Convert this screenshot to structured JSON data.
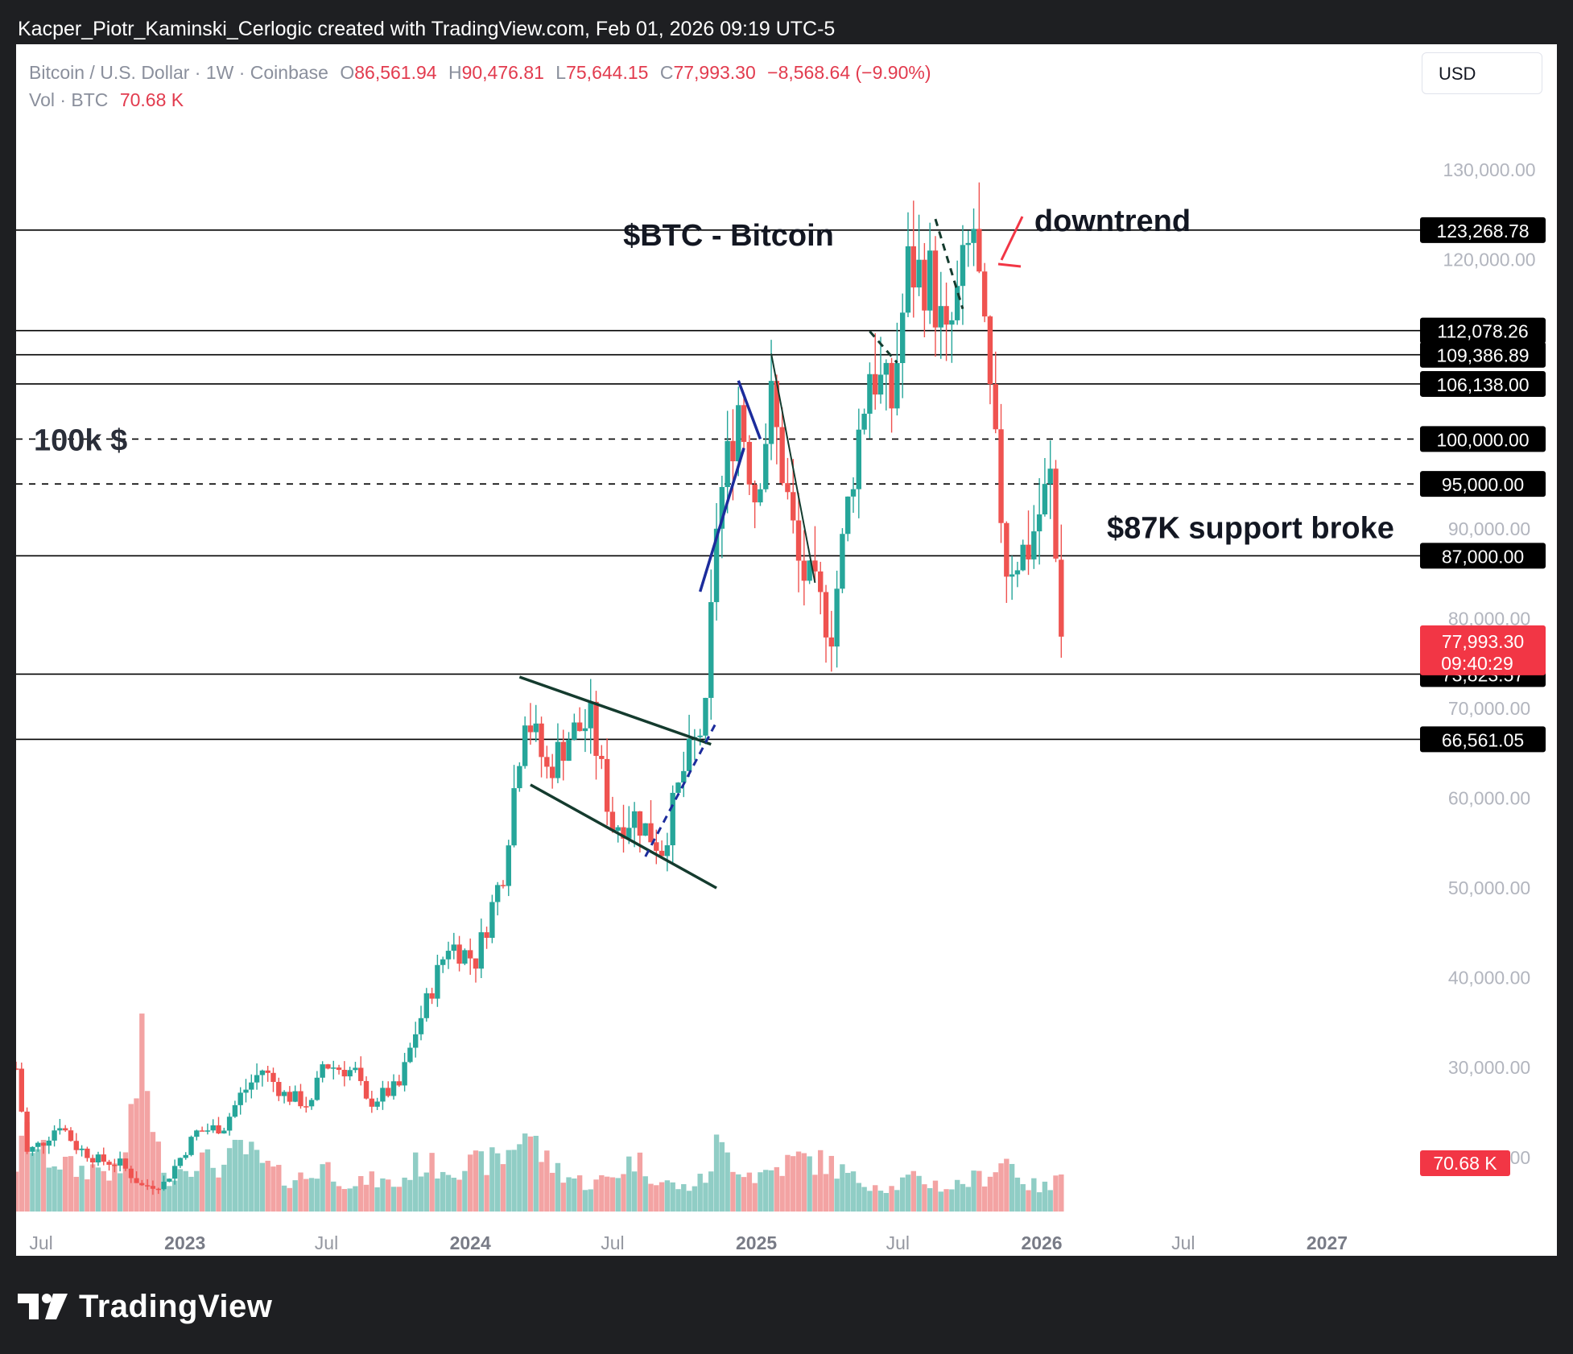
{
  "header": {
    "text": "Kacper_Piotr_Kaminski_Cerlogic created with TradingView.com, Feb 01, 2026 09:19 UTC-5"
  },
  "legend": {
    "symbol": "Bitcoin / U.S. Dollar · 1W · Coinbase",
    "o_label": "O",
    "o_value": "86,561.94",
    "h_label": "H",
    "h_value": "90,476.81",
    "l_label": "L",
    "l_value": "75,644.15",
    "c_label": "C",
    "c_value": "77,993.30",
    "change": "−8,568.64 (−9.90%)",
    "vol_label": "Vol · BTC",
    "vol_value": "70.68 K"
  },
  "currency": "USD",
  "footer": {
    "brand": "TradingView"
  },
  "colors": {
    "up": "#26a69a",
    "down": "#ef5350",
    "vol_up": "#90cdc5",
    "vol_down": "#f3a3a3",
    "accent_red": "#f23645",
    "level_bg": "#000000"
  },
  "chart_data": {
    "type": "candlestick",
    "title": "$BTC - Bitcoin",
    "interval": "1W",
    "ylim": [
      12000,
      135000
    ],
    "y_ticks": [
      "130,000.00",
      "120,000.00",
      "90,000.00",
      "80,000.00",
      "70,000.00",
      "60,000.00",
      "50,000.00",
      "40,000.00",
      "30,000.00",
      "20,000.00"
    ],
    "y_tick_values": [
      130000,
      120000,
      90000,
      80000,
      70000,
      60000,
      50000,
      40000,
      30000,
      20000
    ],
    "x_ticks": [
      "Jul",
      "2023",
      "Jul",
      "2024",
      "Jul",
      "2025",
      "Jul",
      "2026",
      "Jul",
      "2027"
    ],
    "x_tick_dates": [
      "2022-07-01",
      "2023-01-01",
      "2023-07-01",
      "2024-01-01",
      "2024-07-01",
      "2025-01-01",
      "2025-07-01",
      "2026-01-01",
      "2026-07-01",
      "2027-01-01"
    ],
    "bold_x_ticks": [
      "2023",
      "2024",
      "2025",
      "2026",
      "2027"
    ],
    "x_range": [
      "2022-05-30",
      "2027-05-01"
    ],
    "levels": [
      {
        "value": 123268.78,
        "label": "123,268.78",
        "style": "solid"
      },
      {
        "value": 112078.26,
        "label": "112,078.26",
        "style": "solid"
      },
      {
        "value": 109386.89,
        "label": "109,386.89",
        "style": "solid"
      },
      {
        "value": 106138.0,
        "label": "106,138.00",
        "style": "solid"
      },
      {
        "value": 100000.0,
        "label": "100,000.00",
        "style": "dashed"
      },
      {
        "value": 95000.0,
        "label": "95,000.00",
        "style": "dashed"
      },
      {
        "value": 87000.0,
        "label": "87,000.00",
        "style": "solid"
      },
      {
        "value": 73823.57,
        "label": "73,823.57",
        "style": "solid"
      },
      {
        "value": 66561.05,
        "label": "66,561.05",
        "style": "solid"
      }
    ],
    "last_price": {
      "value": 77993.3,
      "label": "77,993.30",
      "countdown": "09:40:29"
    },
    "volume_last_label": "70.68 K",
    "annotations": {
      "title": "$BTC - Bitcoin",
      "downtrend": "downtrend",
      "label_100k": "100k $",
      "support": "$87K support broke"
    },
    "anchors": [
      {
        "d": "2022-05-30",
        "c": 29900,
        "v": 80
      },
      {
        "d": "2022-06-13",
        "c": 20500,
        "v": 130
      },
      {
        "d": "2022-07-04",
        "c": 21800,
        "v": 95
      },
      {
        "d": "2022-07-25",
        "c": 23800,
        "v": 85
      },
      {
        "d": "2022-08-15",
        "c": 21200,
        "v": 70
      },
      {
        "d": "2022-09-12",
        "c": 19700,
        "v": 75
      },
      {
        "d": "2022-10-10",
        "c": 19300,
        "v": 60
      },
      {
        "d": "2022-11-07",
        "c": 16800,
        "v": 260
      },
      {
        "d": "2022-12-05",
        "c": 17100,
        "v": 55
      },
      {
        "d": "2023-01-16",
        "c": 22800,
        "v": 90
      },
      {
        "d": "2023-02-20",
        "c": 23500,
        "v": 75
      },
      {
        "d": "2023-03-13",
        "c": 26900,
        "v": 110
      },
      {
        "d": "2023-04-10",
        "c": 29800,
        "v": 80
      },
      {
        "d": "2023-05-08",
        "c": 27000,
        "v": 55
      },
      {
        "d": "2023-06-12",
        "c": 25800,
        "v": 60
      },
      {
        "d": "2023-06-26",
        "c": 30400,
        "v": 80
      },
      {
        "d": "2023-08-07",
        "c": 29500,
        "v": 40
      },
      {
        "d": "2023-08-21",
        "c": 26000,
        "v": 55
      },
      {
        "d": "2023-10-02",
        "c": 27900,
        "v": 45
      },
      {
        "d": "2023-10-23",
        "c": 34000,
        "v": 80
      },
      {
        "d": "2023-12-04",
        "c": 43800,
        "v": 75
      },
      {
        "d": "2024-01-08",
        "c": 42000,
        "v": 80
      },
      {
        "d": "2024-02-12",
        "c": 52000,
        "v": 90
      },
      {
        "d": "2024-03-11",
        "c": 70000,
        "v": 140
      },
      {
        "d": "2024-04-08",
        "c": 63000,
        "v": 85
      },
      {
        "d": "2024-05-06",
        "c": 67000,
        "v": 60
      },
      {
        "d": "2024-06-03",
        "c": 68500,
        "v": 45
      },
      {
        "d": "2024-07-01",
        "c": 57000,
        "v": 60
      },
      {
        "d": "2024-07-29",
        "c": 58000,
        "v": 90
      },
      {
        "d": "2024-09-02",
        "c": 54500,
        "v": 50
      },
      {
        "d": "2024-09-30",
        "c": 63000,
        "v": 40
      },
      {
        "d": "2024-10-28",
        "c": 69000,
        "v": 55
      },
      {
        "d": "2024-11-11",
        "c": 91000,
        "v": 110
      },
      {
        "d": "2024-12-09",
        "c": 104000,
        "v": 80
      },
      {
        "d": "2024-12-30",
        "c": 94000,
        "v": 60
      },
      {
        "d": "2025-01-20",
        "c": 104000,
        "v": 70
      },
      {
        "d": "2025-02-24",
        "c": 86000,
        "v": 90
      },
      {
        "d": "2025-04-07",
        "c": 79000,
        "v": 80
      },
      {
        "d": "2025-05-05",
        "c": 97000,
        "v": 55
      },
      {
        "d": "2025-05-26",
        "c": 108000,
        "v": 50
      },
      {
        "d": "2025-06-23",
        "c": 104000,
        "v": 40
      },
      {
        "d": "2025-07-14",
        "c": 119000,
        "v": 55
      },
      {
        "d": "2025-08-11",
        "c": 118000,
        "v": 50
      },
      {
        "d": "2025-09-01",
        "c": 110000,
        "v": 40
      },
      {
        "d": "2025-10-06",
        "c": 123500,
        "v": 55
      },
      {
        "d": "2025-10-20",
        "c": 110000,
        "v": 60
      },
      {
        "d": "2025-11-17",
        "c": 86000,
        "v": 90
      },
      {
        "d": "2025-12-15",
        "c": 88000,
        "v": 45
      },
      {
        "d": "2026-01-12",
        "c": 95500,
        "v": 40
      },
      {
        "d": "2026-01-19",
        "c": 86560,
        "v": 50
      },
      {
        "d": "2026-01-26",
        "c": 77993,
        "v": 70
      }
    ]
  }
}
